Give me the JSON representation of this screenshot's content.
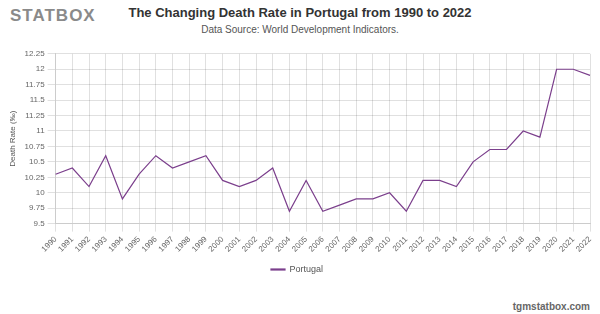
{
  "chart_data": {
    "type": "line",
    "logo": "STATBOX",
    "title": "The Changing Death Rate in Portugal from 1990 to 2022",
    "subtitle": "Data Source: World Development Indicators.",
    "footer": "tgmstatbox.com",
    "y_label": "Death Rate (‰)",
    "categories": [
      "1990",
      "1991",
      "1992",
      "1993",
      "1994",
      "1995",
      "1996",
      "1997",
      "1998",
      "1999",
      "2000",
      "2001",
      "2002",
      "2003",
      "2004",
      "2005",
      "2006",
      "2007",
      "2008",
      "2009",
      "2010",
      "2011",
      "2012",
      "2013",
      "2014",
      "2015",
      "2016",
      "2017",
      "2018",
      "2019",
      "2020",
      "2021",
      "2022"
    ],
    "series": [
      {
        "name": "Portugal",
        "color": "#7b3f8c",
        "values": [
          10.3,
          10.4,
          10.1,
          10.6,
          9.9,
          10.3,
          10.6,
          10.4,
          10.5,
          10.6,
          10.2,
          10.1,
          10.2,
          10.4,
          9.7,
          10.2,
          9.7,
          9.8,
          9.9,
          9.9,
          10.0,
          9.7,
          10.2,
          10.2,
          10.1,
          10.5,
          10.7,
          10.7,
          11.0,
          10.9,
          12.0,
          12.0,
          11.9
        ]
      }
    ],
    "ylim": [
      9.5,
      12.25
    ],
    "yticks": [
      9.5,
      9.75,
      10,
      10.25,
      10.5,
      10.75,
      11,
      11.25,
      11.5,
      11.75,
      12,
      12.25
    ],
    "grid": true,
    "legend": "bottom"
  }
}
